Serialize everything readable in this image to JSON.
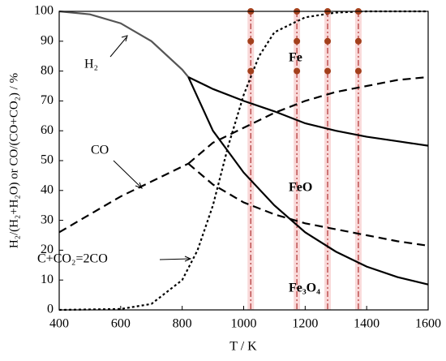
{
  "chart_data": {
    "type": "line",
    "x_label": "T / K",
    "y_label": "H₂/(H₂+H₂O) or CO/(CO+CO₂) / %",
    "xlim": [
      400,
      1600
    ],
    "ylim": [
      0,
      100
    ],
    "xticks": [
      400,
      600,
      800,
      1000,
      1200,
      1400,
      1600
    ],
    "yticks": [
      0,
      10,
      20,
      30,
      40,
      50,
      60,
      70,
      80,
      90,
      100
    ],
    "series": [
      {
        "color": "#555555",
        "dash": "solid",
        "x": [
          400,
          500,
          600,
          700,
          800,
          820
        ],
        "values": [
          100,
          99,
          96,
          90,
          80.5,
          78
        ]
      },
      {
        "color": "#000000",
        "dash": "solid",
        "x": [
          820,
          900,
          1000,
          1100,
          1200,
          1300,
          1400,
          1500,
          1600
        ],
        "values": [
          78,
          74,
          70,
          66.5,
          62.5,
          60,
          58,
          56.5,
          55
        ]
      },
      {
        "color": "#000000",
        "dash": "solid",
        "x": [
          820,
          900,
          1000,
          1100,
          1200,
          1300,
          1400,
          1500,
          1600
        ],
        "values": [
          78,
          60,
          46,
          35,
          26,
          19.5,
          14.5,
          11,
          8.5
        ]
      },
      {
        "color": "#000000",
        "dash": "dashed",
        "x": [
          400,
          500,
          600,
          700,
          800,
          820
        ],
        "values": [
          26,
          32,
          38,
          43,
          48,
          49
        ]
      },
      {
        "color": "#000000",
        "dash": "dashed",
        "x": [
          820,
          900,
          1000,
          1100,
          1200,
          1300,
          1400,
          1500,
          1600
        ],
        "values": [
          49,
          56,
          61,
          66,
          70,
          73,
          75,
          77,
          78
        ]
      },
      {
        "color": "#000000",
        "dash": "dashed",
        "x": [
          820,
          900,
          1000,
          1100,
          1200,
          1300,
          1400,
          1500,
          1600
        ],
        "values": [
          49,
          42,
          36,
          32,
          29,
          27,
          25,
          23,
          21.5
        ]
      },
      {
        "color": "#000000",
        "dash": "dotted",
        "x": [
          400,
          600,
          700,
          800,
          850,
          900,
          950,
          1000,
          1050,
          1100,
          1200,
          1300,
          1400,
          1600
        ],
        "values": [
          0,
          0.3,
          2,
          10,
          20,
          35,
          55,
          72,
          85,
          93,
          98,
          99.6,
          100,
          100
        ]
      }
    ],
    "vlines": [
      1023,
      1173,
      1273,
      1373
    ],
    "vline_color": "#b03030",
    "band_color": "#f6c9c9",
    "points": {
      "color": "#a3401c",
      "x": [
        1023,
        1023,
        1023,
        1173,
        1173,
        1173,
        1273,
        1273,
        1273,
        1373,
        1373,
        1373
      ],
      "y": [
        100,
        90,
        80,
        100,
        90,
        80,
        100,
        90,
        80,
        100,
        90,
        80
      ]
    },
    "annotations": [
      "H₂",
      "CO",
      "C+CO₂=2CO",
      "Fe",
      "FeO",
      "Fe₃O₄"
    ]
  }
}
